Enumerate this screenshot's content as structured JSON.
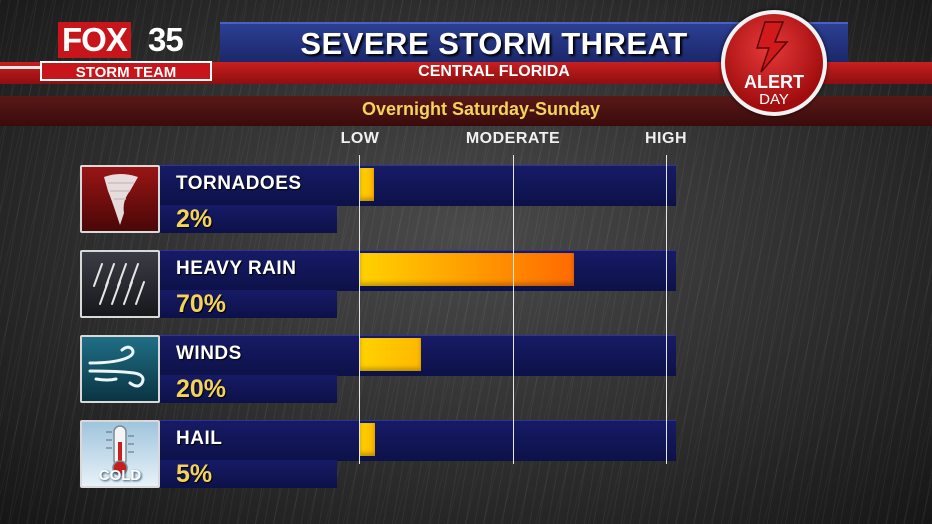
{
  "header": {
    "title": "SEVERE STORM THREAT",
    "subtitle": "CENTRAL FLORIDA",
    "period": "Overnight Saturday-Sunday"
  },
  "logo": {
    "brand": "FOX",
    "channel": "35",
    "team": "STORM TEAM"
  },
  "alert_badge": {
    "line1": "ALERT",
    "line2": "DAY"
  },
  "tile_icons": {
    "tornado_tile": "COLD"
  },
  "colors": {
    "header_blue": "#2c3f93",
    "header_red": "#c91f20",
    "track_navy": "#161b66",
    "percent_yellow": "#f3d35a",
    "bar_low": "#ffd200",
    "bar_high": "#ff6a00"
  },
  "chart_data": {
    "type": "bar",
    "orientation": "horizontal",
    "title": "SEVERE STORM THREAT",
    "subtitle": "CENTRAL FLORIDA",
    "scale_labels": [
      "LOW",
      "MODERATE",
      "HIGH"
    ],
    "xlim": [
      0,
      100
    ],
    "grid": true,
    "categories": [
      "TORNADOES",
      "HEAVY RAIN",
      "WINDS",
      "HAIL"
    ],
    "values": [
      2,
      70,
      20,
      5
    ],
    "value_labels": [
      "2%",
      "70%",
      "20%",
      "5%"
    ],
    "icons": [
      "tornado-icon",
      "heavy-rain-icon",
      "wind-icon",
      "thermometer-icon"
    ],
    "hail_tile_text": "COLD"
  }
}
